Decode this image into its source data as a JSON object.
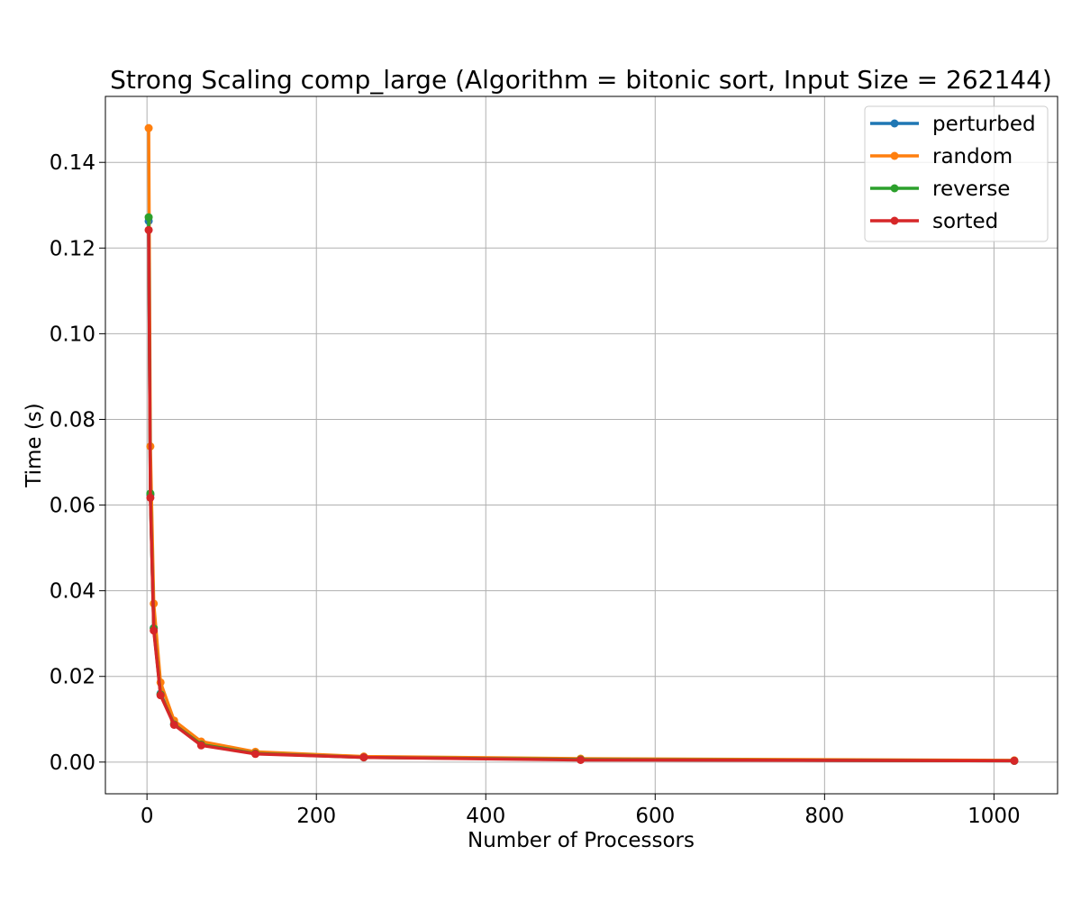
{
  "chart_data": {
    "type": "line",
    "title": "Strong Scaling comp_large (Algorithm = bitonic sort, Input Size = 262144)",
    "xlabel": "Number of Processors",
    "ylabel": "Time (s)",
    "xlim": [
      -49.1,
      1075.1
    ],
    "ylim": [
      -0.0074,
      0.1554
    ],
    "xticks": [
      0,
      200,
      400,
      600,
      800,
      1000
    ],
    "xtick_labels": [
      "0",
      "200",
      "400",
      "600",
      "800",
      "1000"
    ],
    "yticks": [
      0.0,
      0.02,
      0.04,
      0.06,
      0.08,
      0.1,
      0.12,
      0.14
    ],
    "ytick_labels": [
      "0.00",
      "0.02",
      "0.04",
      "0.06",
      "0.08",
      "0.10",
      "0.12",
      "0.14"
    ],
    "grid": true,
    "legend_position": "top-right",
    "x": [
      2,
      4,
      8,
      16,
      32,
      64,
      128,
      256,
      512,
      1024
    ],
    "series": [
      {
        "name": "perturbed",
        "color": "#1f77b4",
        "values": [
          0.1263,
          0.0624,
          0.0313,
          0.016,
          0.0089,
          0.0042,
          0.0021,
          0.0012,
          0.0006,
          0.0003
        ]
      },
      {
        "name": "random",
        "color": "#ff7f0e",
        "values": [
          0.148,
          0.0737,
          0.037,
          0.0186,
          0.0097,
          0.0048,
          0.0024,
          0.0013,
          0.0008,
          0.0004
        ]
      },
      {
        "name": "reverse",
        "color": "#2ca02c",
        "values": [
          0.1272,
          0.0627,
          0.0312,
          0.0158,
          0.0088,
          0.0041,
          0.002,
          0.0011,
          0.0006,
          0.0003
        ]
      },
      {
        "name": "sorted",
        "color": "#d62728",
        "values": [
          0.1242,
          0.0617,
          0.0307,
          0.0156,
          0.0087,
          0.0039,
          0.0019,
          0.0011,
          0.0005,
          0.0003
        ]
      }
    ]
  }
}
